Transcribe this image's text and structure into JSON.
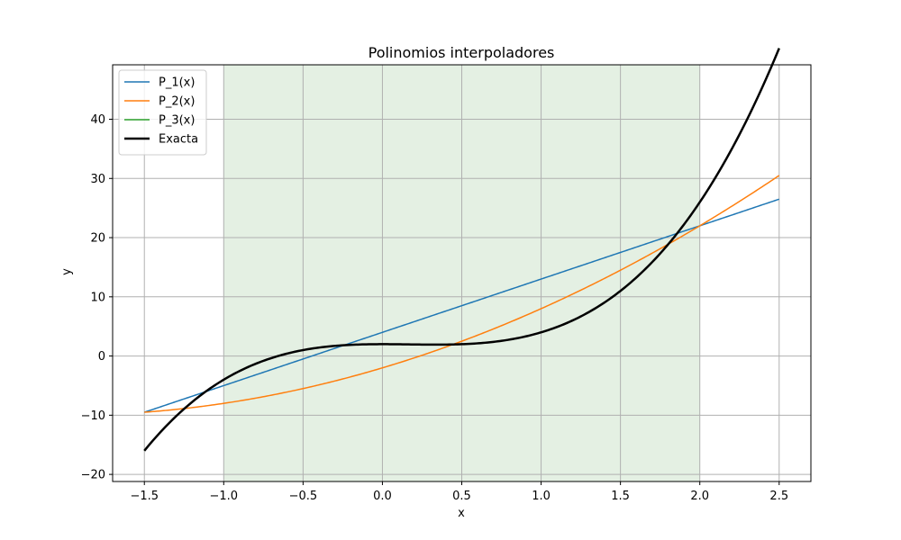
{
  "chart_data": {
    "type": "line",
    "title": "Polinomios interpoladores",
    "xlabel": "x",
    "ylabel": "y",
    "xlim": [
      -1.7,
      2.7
    ],
    "ylim": [
      -21.2,
      49.2
    ],
    "xticks": [
      -1.5,
      -1.0,
      -0.5,
      0.0,
      0.5,
      1.0,
      1.5,
      2.0,
      2.5
    ],
    "xtick_labels": [
      "−1.5",
      "−1.0",
      "−0.5",
      "0.0",
      "0.5",
      "1.0",
      "1.5",
      "2.0",
      "2.5"
    ],
    "yticks": [
      -20,
      -10,
      0,
      10,
      20,
      30,
      40
    ],
    "ytick_labels": [
      "−20",
      "−10",
      "0",
      "10",
      "20",
      "30",
      "40"
    ],
    "grid": true,
    "legend_position": "top-left",
    "shaded_region": {
      "x": [
        -1,
        2
      ],
      "color": "#e4f0e3"
    },
    "x_range": [
      -1.5,
      2.5
    ],
    "series": [
      {
        "name": "P_1(x)",
        "color": "#1f77b4",
        "width": 1.5,
        "polynomial": [
          4,
          9
        ],
        "x": [
          -1.5,
          2.5
        ],
        "y": [
          -9.5,
          26.5
        ]
      },
      {
        "name": "P_2(x)",
        "color": "#ff7f0e",
        "width": 1.5,
        "polynomial": [
          -2,
          8,
          2
        ],
        "x": [
          -1.5,
          -1.0,
          0.5,
          2.0,
          2.5
        ],
        "y": [
          -9.5,
          -5,
          1.75,
          22,
          30.75
        ]
      },
      {
        "name": "P_3(x)",
        "color": "#2ca02c",
        "width": 1.5,
        "polynomial": [
          2,
          0,
          -2,
          4
        ],
        "x": [
          -1.5,
          -1.0,
          0.5,
          2.0,
          2.5
        ],
        "y": [
          -18.5,
          -4,
          1.75,
          22,
          45.5
        ]
      },
      {
        "name": "Exacta",
        "color": "#000000",
        "width": 2.5,
        "polynomial": [
          2,
          0,
          -2,
          4
        ],
        "x": [
          -1.5,
          -1.0,
          0.0,
          0.5,
          2.0,
          2.5
        ],
        "y": [
          -18.5,
          -4,
          2,
          1.75,
          22,
          45.5
        ]
      }
    ]
  }
}
